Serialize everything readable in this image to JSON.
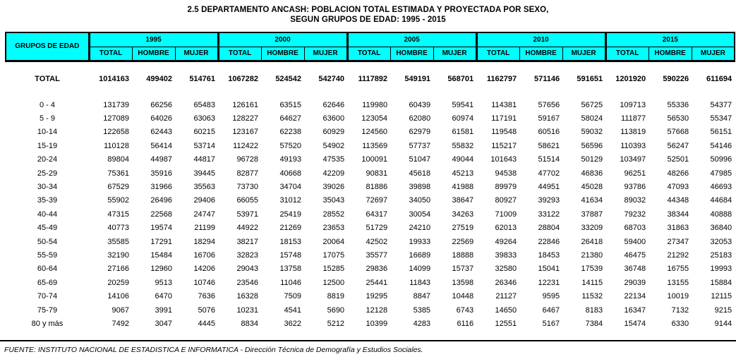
{
  "title": {
    "line1": "2.5  DEPARTAMENTO ANCASH: POBLACION TOTAL ESTIMADA Y PROYECTADA POR SEXO,",
    "line2": "SEGUN GRUPOS DE EDAD: 1995 - 2015"
  },
  "colors": {
    "header_bg": "#00FFFF",
    "border": "#000000",
    "page_bg": "#FFFFFF"
  },
  "table": {
    "corner_header": "GRUPOS DE EDAD",
    "years": [
      "1995",
      "2000",
      "2005",
      "2010",
      "2015"
    ],
    "sub_headers": [
      "TOTAL",
      "HOMBRE",
      "MUJER"
    ],
    "total_row": {
      "label": "TOTAL",
      "values": [
        1014163,
        499402,
        514761,
        1067282,
        524542,
        542740,
        1117892,
        549191,
        568701,
        1162797,
        571146,
        591651,
        1201920,
        590226,
        611694
      ]
    },
    "rows": [
      {
        "label": "0 - 4",
        "values": [
          131739,
          66256,
          65483,
          126161,
          63515,
          62646,
          119980,
          60439,
          59541,
          114381,
          57656,
          56725,
          109713,
          55336,
          54377
        ]
      },
      {
        "label": "5 - 9",
        "values": [
          127089,
          64026,
          63063,
          128227,
          64627,
          63600,
          123054,
          62080,
          60974,
          117191,
          59167,
          58024,
          111877,
          56530,
          55347
        ]
      },
      {
        "label": "10-14",
        "values": [
          122658,
          62443,
          60215,
          123167,
          62238,
          60929,
          124560,
          62979,
          61581,
          119548,
          60516,
          59032,
          113819,
          57668,
          56151
        ]
      },
      {
        "label": "15-19",
        "values": [
          110128,
          56414,
          53714,
          112422,
          57520,
          54902,
          113569,
          57737,
          55832,
          115217,
          58621,
          56596,
          110393,
          56247,
          54146
        ]
      },
      {
        "label": "20-24",
        "values": [
          89804,
          44987,
          44817,
          96728,
          49193,
          47535,
          100091,
          51047,
          49044,
          101643,
          51514,
          50129,
          103497,
          52501,
          50996
        ]
      },
      {
        "label": "25-29",
        "values": [
          75361,
          35916,
          39445,
          82877,
          40668,
          42209,
          90831,
          45618,
          45213,
          94538,
          47702,
          46836,
          96251,
          48266,
          47985
        ]
      },
      {
        "label": "30-34",
        "values": [
          67529,
          31966,
          35563,
          73730,
          34704,
          39026,
          81886,
          39898,
          41988,
          89979,
          44951,
          45028,
          93786,
          47093,
          46693
        ]
      },
      {
        "label": "35-39",
        "values": [
          55902,
          26496,
          29406,
          66055,
          31012,
          35043,
          72697,
          34050,
          38647,
          80927,
          39293,
          41634,
          89032,
          44348,
          44684
        ]
      },
      {
        "label": "40-44",
        "values": [
          47315,
          22568,
          24747,
          53971,
          25419,
          28552,
          64317,
          30054,
          34263,
          71009,
          33122,
          37887,
          79232,
          38344,
          40888
        ]
      },
      {
        "label": "45-49",
        "values": [
          40773,
          19574,
          21199,
          44922,
          21269,
          23653,
          51729,
          24210,
          27519,
          62013,
          28804,
          33209,
          68703,
          31863,
          36840
        ]
      },
      {
        "label": "50-54",
        "values": [
          35585,
          17291,
          18294,
          38217,
          18153,
          20064,
          42502,
          19933,
          22569,
          49264,
          22846,
          26418,
          59400,
          27347,
          32053
        ]
      },
      {
        "label": "55-59",
        "values": [
          32190,
          15484,
          16706,
          32823,
          15748,
          17075,
          35577,
          16689,
          18888,
          39833,
          18453,
          21380,
          46475,
          21292,
          25183
        ]
      },
      {
        "label": "60-64",
        "values": [
          27166,
          12960,
          14206,
          29043,
          13758,
          15285,
          29836,
          14099,
          15737,
          32580,
          15041,
          17539,
          36748,
          16755,
          19993
        ]
      },
      {
        "label": "65-69",
        "values": [
          20259,
          9513,
          10746,
          23546,
          11046,
          12500,
          25441,
          11843,
          13598,
          26346,
          12231,
          14115,
          29039,
          13155,
          15884
        ]
      },
      {
        "label": "70-74",
        "values": [
          14106,
          6470,
          7636,
          16328,
          7509,
          8819,
          19295,
          8847,
          10448,
          21127,
          9595,
          11532,
          22134,
          10019,
          12115
        ]
      },
      {
        "label": "75-79",
        "values": [
          9067,
          3991,
          5076,
          10231,
          4541,
          5690,
          12128,
          5385,
          6743,
          14650,
          6467,
          8183,
          16347,
          7132,
          9215
        ]
      },
      {
        "label": "80 y más",
        "values": [
          7492,
          3047,
          4445,
          8834,
          3622,
          5212,
          10399,
          4283,
          6116,
          12551,
          5167,
          7384,
          15474,
          6330,
          9144
        ]
      }
    ]
  },
  "footer": {
    "source": "FUENTE: INSTITUTO NACIONAL DE ESTADISTICA E INFORMATICA - Dirección Técnica de Demografía y Estudios Sociales."
  }
}
